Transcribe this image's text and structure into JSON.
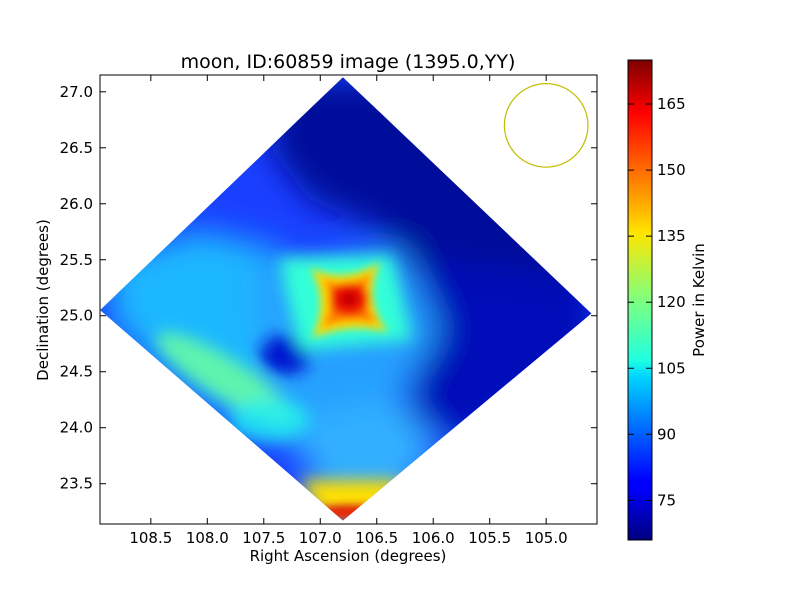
{
  "chart_data": {
    "type": "heatmap",
    "title": "moon, ID:60859 image (1395.0,YY)",
    "xlabel": "Right Ascension (degrees)",
    "ylabel": "Declination (degrees)",
    "xlim": [
      108.95,
      104.55
    ],
    "ylim": [
      23.14,
      27.15
    ],
    "x_axis_inverted": true,
    "xticks": [
      108.5,
      108.0,
      107.5,
      107.0,
      106.5,
      106.0,
      105.5,
      105.0
    ],
    "xtick_labels": [
      "108.5",
      "108.0",
      "107.5",
      "107.0",
      "106.5",
      "106.0",
      "105.5",
      "105.0"
    ],
    "yticks": [
      23.5,
      24.0,
      24.5,
      25.0,
      25.5,
      26.0,
      26.5,
      27.0
    ],
    "ytick_labels": [
      "23.5",
      "24.0",
      "24.5",
      "25.0",
      "25.5",
      "26.0",
      "26.5",
      "27.0"
    ],
    "colormap": "jet",
    "colorbar": {
      "label": "Power in Kelvin",
      "range": [
        66,
        175
      ],
      "ticks": [
        75,
        90,
        105,
        120,
        135,
        150,
        165
      ],
      "tick_labels": [
        "75",
        "90",
        "105",
        "120",
        "135",
        "150",
        "165"
      ]
    },
    "coverage": {
      "shape": "diamond",
      "vertices": [
        [
          106.8,
          27.13
        ],
        [
          104.6,
          25.02
        ],
        [
          106.8,
          23.17
        ],
        [
          108.95,
          25.05
        ]
      ]
    },
    "beam_circle": {
      "ra": 105.0,
      "dec": 26.7,
      "radius_deg": 0.37,
      "color": "#bfbf00"
    },
    "peak": {
      "ra": 106.8,
      "dec": 25.1,
      "value": 165
    },
    "grid": false,
    "legend": "none"
  }
}
